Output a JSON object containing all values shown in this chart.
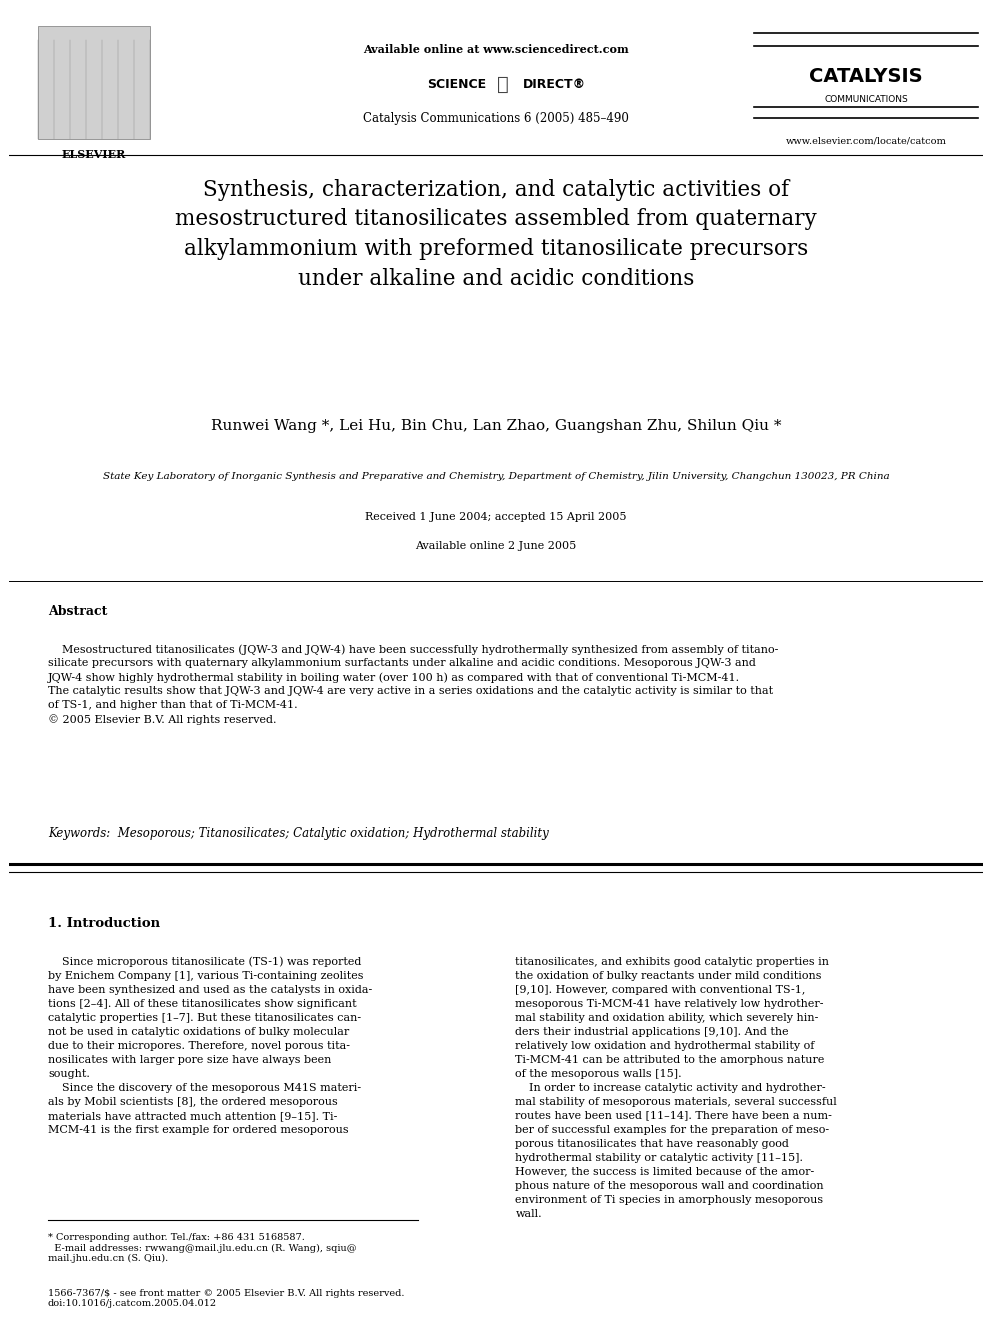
{
  "bg_color": "#ffffff",
  "header": {
    "available_online": "Available online at www.sciencedirect.com",
    "journal_info": "Catalysis Communications 6 (2005) 485–490",
    "website": "www.elsevier.com/locate/catcom"
  },
  "title": "Synthesis, characterization, and catalytic activities of\nmesostructured titanosilicates assembled from quaternary\nalkylammonium with preformed titanosilicate precursors\nunder alkaline and acidic conditions",
  "authors": "Runwei Wang *, Lei Hu, Bin Chu, Lan Zhao, Guangshan Zhu, Shilun Qiu *",
  "affiliation": "State Key Laboratory of Inorganic Synthesis and Preparative and Chemistry, Department of Chemistry, Jilin University, Changchun 130023, PR China",
  "received": "Received 1 June 2004; accepted 15 April 2005",
  "available": "Available online 2 June 2005",
  "abstract_title": "Abstract",
  "abstract_text": "    Mesostructured titanosilicates (JQW-3 and JQW-4) have been successfully hydrothermally synthesized from assembly of titano-\nsilicate precursors with quaternary alkylammonium surfactants under alkaline and acidic conditions. Mesoporous JQW-3 and\nJQW-4 show highly hydrothermal stability in boiling water (over 100 h) as compared with that of conventional Ti-MCM-41.\nThe catalytic results show that JQW-3 and JQW-4 are very active in a series oxidations and the catalytic activity is similar to that\nof TS-1, and higher than that of Ti-MCM-41.\n© 2005 Elsevier B.V. All rights reserved.",
  "keywords": "Keywords:  Mesoporous; Titanosilicates; Catalytic oxidation; Hydrothermal stability",
  "section1_title": "1. Introduction",
  "col1_text": "    Since microporous titanosilicate (TS-1) was reported\nby Enichem Company [1], various Ti-containing zeolites\nhave been synthesized and used as the catalysts in oxida-\ntions [2–4]. All of these titanosilicates show significant\ncatalytic properties [1–7]. But these titanosilicates can-\nnot be used in catalytic oxidations of bulky molecular\ndue to their micropores. Therefore, novel porous tita-\nnosilicates with larger pore size have always been\nsought.\n    Since the discovery of the mesoporous M41S materi-\nals by Mobil scientists [8], the ordered mesoporous\nmaterials have attracted much attention [9–15]. Ti-\nMCM-41 is the first example for ordered mesoporous",
  "col2_text": "titanosilicates, and exhibits good catalytic properties in\nthe oxidation of bulky reactants under mild conditions\n[9,10]. However, compared with conventional TS-1,\nmesoporous Ti-MCM-41 have relatively low hydrother-\nmal stability and oxidation ability, which severely hin-\nders their industrial applications [9,10]. And the\nrelatively low oxidation and hydrothermal stability of\nTi-MCM-41 can be attributed to the amorphous nature\nof the mesoporous walls [15].\n    In order to increase catalytic activity and hydrother-\nmal stability of mesoporous materials, several successful\nroutes have been used [11–14]. There have been a num-\nber of successful examples for the preparation of meso-\nporous titanosilicates that have reasonably good\nhydrothermal stability or catalytic activity [11–15].\nHowever, the success is limited because of the amor-\nphous nature of the mesoporous wall and coordination\nenvironment of Ti species in amorphously mesoporous\nwall.",
  "footnote_text": "* Corresponding author. Tel./fax: +86 431 5168587.\n  E-mail addresses: rwwang@mail.jlu.edu.cn (R. Wang), sqiu@\nmail.jhu.edu.cn (S. Qiu).",
  "copyright_text": "1566-7367/$ - see front matter © 2005 Elsevier B.V. All rights reserved.\ndoi:10.1016/j.catcom.2005.04.012"
}
